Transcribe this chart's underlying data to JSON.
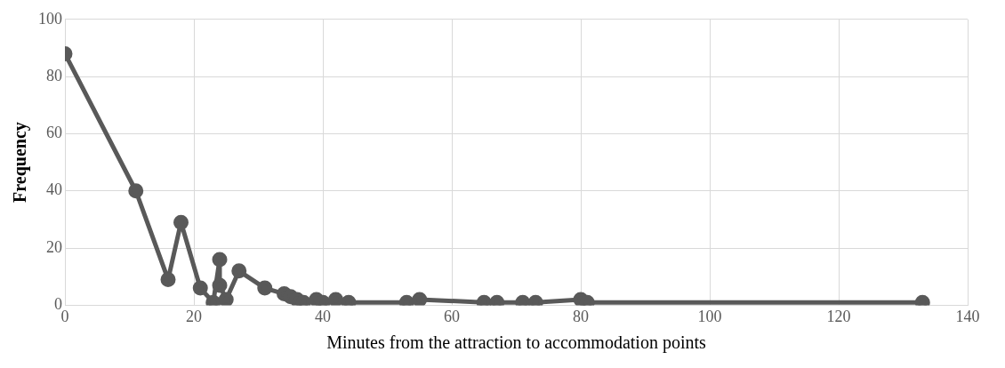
{
  "chart_data": {
    "type": "line",
    "xlabel": "Minutes from the attraction to accommodation points",
    "ylabel": "Frequency",
    "x": [
      0,
      11,
      16,
      18,
      21,
      23,
      24,
      24,
      25,
      27,
      31,
      34,
      35,
      36,
      37,
      39,
      40,
      42,
      44,
      53,
      55,
      65,
      67,
      71,
      73,
      80,
      81,
      133
    ],
    "series": [
      {
        "color": "#595959",
        "values": [
          88,
          40,
          9,
          29,
          6,
          1,
          16,
          7,
          2,
          12,
          6,
          4,
          3,
          2,
          1,
          2,
          1,
          2,
          1,
          1,
          2,
          1,
          1,
          1,
          1,
          2,
          1,
          1
        ]
      }
    ],
    "xlim": [
      0,
      140
    ],
    "xticks": [
      0,
      20,
      40,
      60,
      80,
      100,
      120,
      140
    ],
    "ylim": [
      0,
      100
    ],
    "yticks": [
      0,
      20,
      40,
      60,
      80,
      100
    ],
    "grid": true,
    "legend": false,
    "marker": "circle",
    "line_style": "solid"
  }
}
